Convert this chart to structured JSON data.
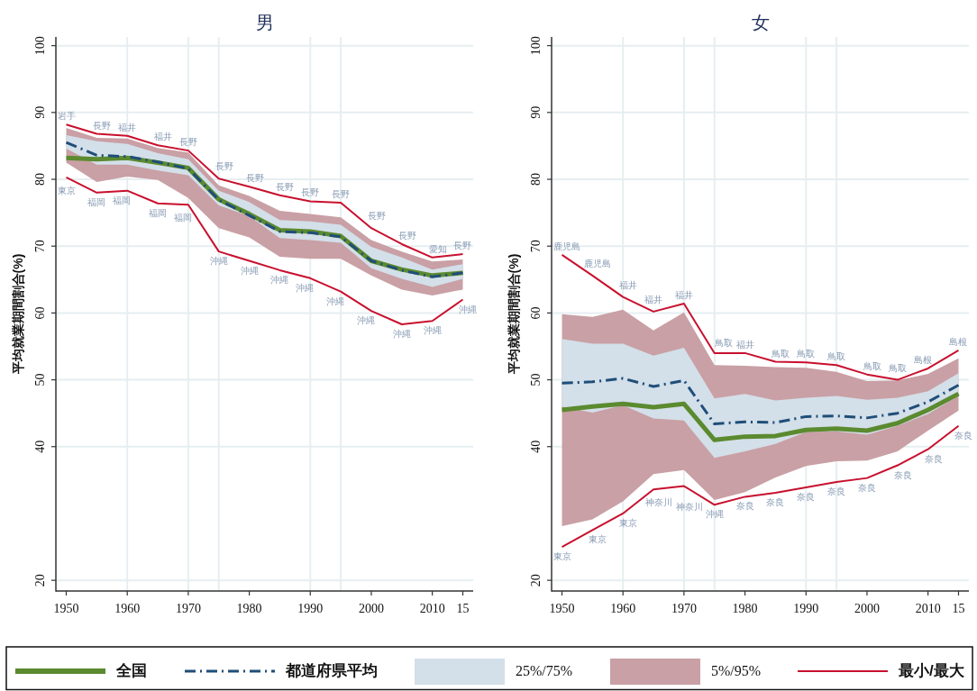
{
  "chart_data": [
    {
      "type": "line",
      "title": "男",
      "ylabel": "平均就業期間割合(%)",
      "x": [
        1950,
        1955,
        1960,
        1965,
        1970,
        1975,
        1980,
        1985,
        1990,
        1995,
        2000,
        2005,
        2010,
        2015
      ],
      "xlim": [
        1948.3,
        2016.7
      ],
      "xticks": [
        1950,
        1960,
        1970,
        1980,
        1990,
        2000,
        2010,
        {
          "value": 2015,
          "label": "15"
        }
      ],
      "ylim": [
        18.4,
        101.3
      ],
      "yticks": [
        20,
        40,
        50,
        60,
        70,
        80,
        90,
        100
      ],
      "grid": "y",
      "legend": "bottom",
      "ref_lines": [
        {
          "axis": "x",
          "value": 1960,
          "color": "#e6eef1"
        },
        {
          "axis": "x",
          "value": 1970,
          "color": "#e6eef1"
        },
        {
          "axis": "x",
          "value": 1975,
          "color": "#e6eef1"
        },
        {
          "axis": "x",
          "value": 1990,
          "color": "#e6eef1"
        },
        {
          "axis": "x",
          "value": 1995,
          "color": "#e6eef1"
        }
      ],
      "series": [
        {
          "name": "全国",
          "type": "line",
          "color": "#5b8a2f",
          "values": [
            83.2,
            83.0,
            83.2,
            82.5,
            81.7,
            77.0,
            74.8,
            72.4,
            72.2,
            71.5,
            67.8,
            66.5,
            65.6,
            66.0
          ]
        },
        {
          "name": "都道府県平均",
          "type": "line",
          "color": "#1f4e79",
          "line_style": "dashed",
          "values": [
            85.5,
            83.6,
            83.4,
            82.6,
            81.6,
            76.9,
            74.6,
            72.2,
            72.0,
            71.4,
            67.8,
            66.4,
            65.4,
            66.0
          ]
        },
        {
          "name": "25%/75%",
          "type": "area",
          "color": "#d3dfe9",
          "values": [
            null,
            null,
            null,
            null,
            null,
            null,
            null,
            null,
            null,
            null,
            null,
            null,
            null,
            null
          ],
          "lower": [
            84.6,
            82.2,
            82.2,
            81.3,
            80.6,
            76.1,
            74.5,
            71.2,
            70.9,
            70.5,
            66.7,
            65.1,
            63.9,
            65.1
          ],
          "upper": [
            86.6,
            85.7,
            85.3,
            83.9,
            83.0,
            78.3,
            76.6,
            73.9,
            73.7,
            73.2,
            69.9,
            68.3,
            66.5,
            67.3
          ]
        },
        {
          "name": "5%/95%",
          "type": "area",
          "color": "#c9a0a5",
          "values": [
            null,
            null,
            null,
            null,
            null,
            null,
            null,
            null,
            null,
            null,
            null,
            null,
            null,
            null
          ],
          "lower": [
            82.5,
            79.6,
            80.4,
            79.9,
            77.2,
            72.7,
            71.3,
            68.4,
            68.1,
            68.1,
            65.6,
            63.5,
            62.6,
            63.5
          ],
          "upper": [
            87.7,
            86.2,
            86.1,
            84.7,
            84.0,
            79.1,
            77.5,
            75.3,
            74.8,
            74.3,
            70.9,
            69.2,
            67.7,
            68.0
          ]
        },
        {
          "name": "最小/最大",
          "type": "line",
          "color": "#c8102e",
          "values": [
            80.3,
            78.0,
            78.3,
            76.4,
            76.2,
            69.2,
            67.8,
            66.4,
            65.2,
            63.2,
            60.3,
            58.3,
            58.8,
            62.0
          ]
        },
        {
          "type": "line",
          "color": "#c8102e",
          "values": [
            88.2,
            86.8,
            86.5,
            85.1,
            84.3,
            80.1,
            78.9,
            77.6,
            76.7,
            76.5,
            72.7,
            70.3,
            68.3,
            68.8
          ]
        }
      ],
      "annotations": [
        {
          "text": "岩手",
          "x": 1950,
          "y": 88.2
        },
        {
          "text": "長野",
          "x": 1955,
          "y": 86.8
        },
        {
          "text": "福井",
          "x": 1960,
          "y": 86.5
        },
        {
          "text": "福井",
          "x": 1965,
          "y": 85.1
        },
        {
          "text": "長野",
          "x": 1970,
          "y": 84.3
        },
        {
          "text": "長野",
          "x": 1975,
          "y": 80.1
        },
        {
          "text": "長野",
          "x": 1980,
          "y": 78.9
        },
        {
          "text": "長野",
          "x": 1985,
          "y": 77.6
        },
        {
          "text": "長野",
          "x": 1990,
          "y": 76.7
        },
        {
          "text": "長野",
          "x": 1995,
          "y": 76.5
        },
        {
          "text": "長野",
          "x": 2000,
          "y": 72.7
        },
        {
          "text": "長野",
          "x": 2005,
          "y": 70.3
        },
        {
          "text": "愛知",
          "x": 2010,
          "y": 68.3
        },
        {
          "text": "長野",
          "x": 2015,
          "y": 68.8
        },
        {
          "text": "東京",
          "x": 1950,
          "y": 80.3
        },
        {
          "text": "福岡",
          "x": 1955,
          "y": 78.0
        },
        {
          "text": "福岡",
          "x": 1960,
          "y": 78.3
        },
        {
          "text": "福岡",
          "x": 1965,
          "y": 76.4
        },
        {
          "text": "福岡",
          "x": 1970,
          "y": 76.2
        },
        {
          "text": "沖縄",
          "x": 1975,
          "y": 69.2
        },
        {
          "text": "沖縄",
          "x": 1980,
          "y": 67.8
        },
        {
          "text": "沖縄",
          "x": 1985,
          "y": 66.4
        },
        {
          "text": "沖縄",
          "x": 1990,
          "y": 65.2
        },
        {
          "text": "沖縄",
          "x": 1995,
          "y": 63.2
        },
        {
          "text": "沖縄",
          "x": 2000,
          "y": 60.3
        },
        {
          "text": "沖縄",
          "x": 2005,
          "y": 58.3
        },
        {
          "text": "沖縄",
          "x": 2010,
          "y": 58.8
        },
        {
          "text": "沖縄",
          "x": 2015,
          "y": 62.0
        }
      ]
    },
    {
      "type": "line",
      "title": "女",
      "ylabel": "平均就業期間割合(%)",
      "x": [
        1950,
        1955,
        1960,
        1965,
        1970,
        1975,
        1980,
        1985,
        1990,
        1995,
        2000,
        2005,
        2010,
        2015
      ],
      "xlim": [
        1948.3,
        2016.7
      ],
      "xticks": [
        1950,
        1960,
        1970,
        1980,
        1990,
        2000,
        2010,
        {
          "value": 2015,
          "label": "15"
        }
      ],
      "ylim": [
        18.4,
        101.3
      ],
      "yticks": [
        20,
        40,
        50,
        60,
        70,
        80,
        90,
        100
      ],
      "grid": "y",
      "ref_lines": [
        {
          "axis": "x",
          "value": 1960,
          "color": "#e6eef1"
        },
        {
          "axis": "x",
          "value": 1970,
          "color": "#e6eef1"
        },
        {
          "axis": "x",
          "value": 1975,
          "color": "#e6eef1"
        },
        {
          "axis": "x",
          "value": 1990,
          "color": "#e6eef1"
        },
        {
          "axis": "x",
          "value": 1995,
          "color": "#e6eef1"
        }
      ],
      "series": [
        {
          "type": "line",
          "color": "#5b8a2f",
          "values": [
            45.5,
            46.0,
            46.4,
            45.9,
            46.4,
            41.0,
            41.5,
            41.6,
            42.5,
            42.7,
            42.4,
            43.5,
            45.5,
            47.9
          ]
        },
        {
          "type": "line",
          "color": "#1f4e79",
          "line_style": "dashed",
          "values": [
            49.5,
            49.7,
            50.2,
            49.0,
            49.9,
            43.4,
            43.7,
            43.6,
            44.5,
            44.6,
            44.3,
            45.0,
            46.7,
            49.2
          ]
        },
        {
          "type": "area",
          "color": "#d3dfe9",
          "values": [
            null,
            null,
            null,
            null,
            null,
            null,
            null,
            null,
            null,
            null,
            null,
            null,
            null,
            null
          ],
          "lower": [
            46.0,
            45.1,
            46.2,
            44.2,
            43.9,
            38.3,
            39.3,
            40.4,
            42.2,
            42.3,
            41.8,
            43.1,
            44.9,
            47.6
          ],
          "upper": [
            56.1,
            55.4,
            55.4,
            53.6,
            54.8,
            47.2,
            47.9,
            46.9,
            47.3,
            47.6,
            47.0,
            47.3,
            48.3,
            51.0
          ]
        },
        {
          "type": "area",
          "color": "#c9a0a5",
          "values": [
            null,
            null,
            null,
            null,
            null,
            null,
            null,
            null,
            null,
            null,
            null,
            null,
            null,
            null
          ],
          "lower": [
            28.1,
            29.1,
            31.8,
            35.9,
            36.5,
            32.0,
            33.2,
            35.4,
            37.1,
            37.8,
            37.9,
            39.3,
            42.4,
            45.4
          ],
          "upper": [
            59.8,
            59.4,
            60.5,
            57.4,
            60.1,
            52.2,
            52.1,
            51.9,
            51.8,
            51.2,
            49.8,
            49.9,
            50.9,
            53.2
          ]
        },
        {
          "type": "line",
          "color": "#c8102e",
          "values": [
            25.0,
            27.5,
            30.0,
            33.6,
            34.1,
            31.3,
            32.5,
            33.1,
            33.9,
            34.7,
            35.3,
            37.2,
            39.6,
            43.1
          ]
        },
        {
          "type": "line",
          "color": "#c8102e",
          "values": [
            68.7,
            65.6,
            62.4,
            60.2,
            61.4,
            54.0,
            54.0,
            52.7,
            52.6,
            52.2,
            50.8,
            50.0,
            51.7,
            54.4
          ]
        }
      ],
      "annotations": [
        {
          "text": "鹿児島",
          "x": 1950,
          "y": 68.7
        },
        {
          "text": "鹿児島",
          "x": 1955,
          "y": 65.6
        },
        {
          "text": "福井",
          "x": 1960,
          "y": 62.4
        },
        {
          "text": "福井",
          "x": 1965,
          "y": 60.2
        },
        {
          "text": "福井",
          "x": 1970,
          "y": 61.4
        },
        {
          "text": "鳥取",
          "x": 1975,
          "y": 54.0
        },
        {
          "text": "福井",
          "x": 1980,
          "y": 54.0
        },
        {
          "text": "鳥取",
          "x": 1985,
          "y": 52.7
        },
        {
          "text": "鳥取",
          "x": 1990,
          "y": 52.6
        },
        {
          "text": "鳥取",
          "x": 1995,
          "y": 52.2
        },
        {
          "text": "鳥取",
          "x": 2000,
          "y": 50.8
        },
        {
          "text": "鳥取",
          "x": 2005,
          "y": 50.0
        },
        {
          "text": "島根",
          "x": 2010,
          "y": 51.7
        },
        {
          "text": "島根",
          "x": 2015,
          "y": 54.4
        },
        {
          "text": "東京",
          "x": 1950,
          "y": 25.0
        },
        {
          "text": "東京",
          "x": 1955,
          "y": 27.5
        },
        {
          "text": "東京",
          "x": 1960,
          "y": 30.0
        },
        {
          "text": "神奈川",
          "x": 1965,
          "y": 33.6
        },
        {
          "text": "神奈川",
          "x": 1970,
          "y": 34.1
        },
        {
          "text": "沖縄",
          "x": 1975,
          "y": 31.3
        },
        {
          "text": "奈良",
          "x": 1980,
          "y": 32.5
        },
        {
          "text": "奈良",
          "x": 1985,
          "y": 33.1
        },
        {
          "text": "奈良",
          "x": 1990,
          "y": 33.9
        },
        {
          "text": "奈良",
          "x": 1995,
          "y": 34.7
        },
        {
          "text": "奈良",
          "x": 2000,
          "y": 35.3
        },
        {
          "text": "奈良",
          "x": 2005,
          "y": 37.2
        },
        {
          "text": "奈良",
          "x": 2010,
          "y": 39.6
        },
        {
          "text": "奈良",
          "x": 2015,
          "y": 43.1
        }
      ]
    }
  ]
}
